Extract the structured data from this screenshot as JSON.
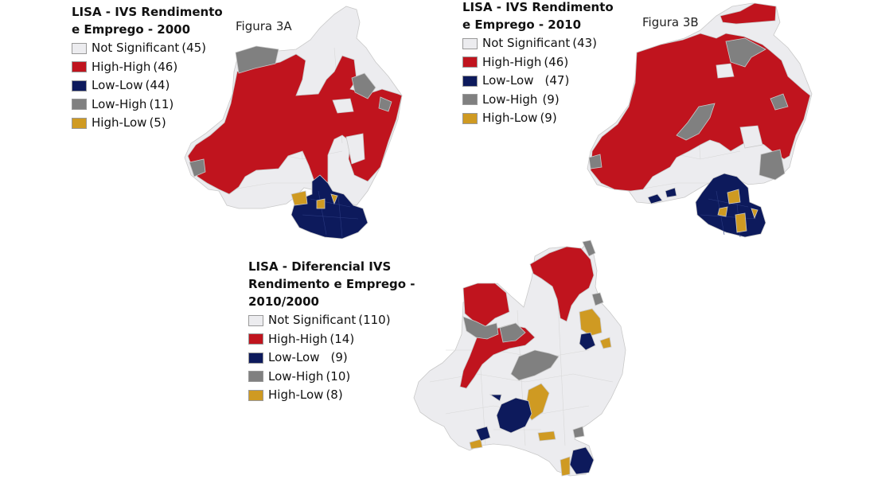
{
  "colors": {
    "not_significant": "#ececef",
    "high_high": "#c0141e",
    "low_low": "#0d1a5c",
    "low_high": "#808080",
    "high_low": "#cf9a22"
  },
  "maps": [
    {
      "title_line1": "LISA - IVS Rendimento",
      "title_line2": "e Emprego - 2000",
      "figure_label": "Figura 3A",
      "legend": [
        {
          "key": "not_significant",
          "label": "Not Significant",
          "count": "(45)"
        },
        {
          "key": "high_high",
          "label": "High-High",
          "count": "(46)"
        },
        {
          "key": "low_low",
          "label": "Low-Low",
          "count": "(44)"
        },
        {
          "key": "low_high",
          "label": "Low-High",
          "count": "(11)"
        },
        {
          "key": "high_low",
          "label": "High-Low",
          "count": "(5)"
        }
      ]
    },
    {
      "title_line1": "LISA - IVS Rendimento",
      "title_line2": "e Emprego - 2010",
      "figure_label": "Figura 3B",
      "legend": [
        {
          "key": "not_significant",
          "label": "Not Significant",
          "count": "(43)"
        },
        {
          "key": "high_high",
          "label": "High-High",
          "count": "(46)"
        },
        {
          "key": "low_low",
          "label": "Low-Low",
          "count": "(47)"
        },
        {
          "key": "low_high",
          "label": "Low-High",
          "count": "(9)"
        },
        {
          "key": "high_low",
          "label": "High-Low",
          "count": "(9)"
        }
      ]
    },
    {
      "title_line1": "LISA - Diferencial IVS",
      "title_line2": "Rendimento e Emprego -",
      "title_line3": "2010/2000",
      "legend": [
        {
          "key": "not_significant",
          "label": "Not Significant",
          "count": "(110)"
        },
        {
          "key": "high_high",
          "label": "High-High",
          "count": "(14)"
        },
        {
          "key": "low_low",
          "label": "Low-Low",
          "count": "(9)"
        },
        {
          "key": "low_high",
          "label": "Low-High",
          "count": "(10)"
        },
        {
          "key": "high_low",
          "label": "High-Low",
          "count": "(8)"
        }
      ]
    }
  ]
}
